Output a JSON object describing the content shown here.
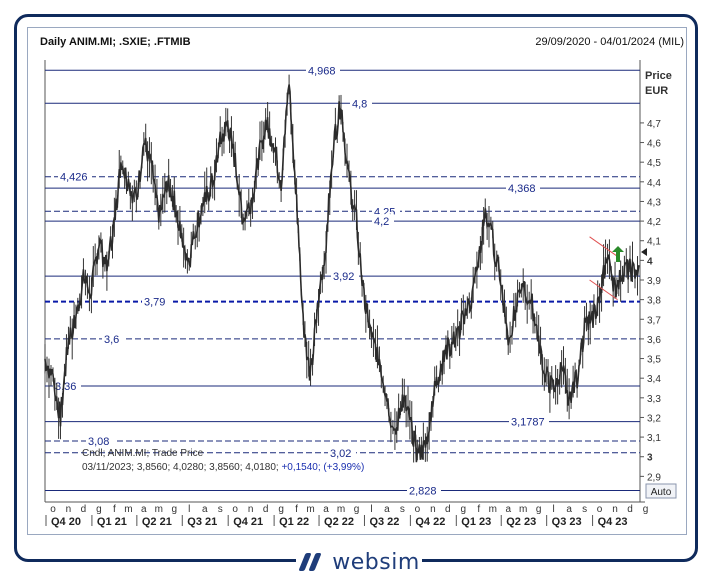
{
  "header": {
    "title": "Daily ANIM.MI; .SXIE; .FTMIB",
    "range": "29/09/2020 - 04/01/2024 (MIL)"
  },
  "axis": {
    "price_label": "Price",
    "currency_label": "EUR",
    "auto_button": "Auto",
    "brand": "websim"
  },
  "info_box": {
    "line1": "Cndl; ANIM.MI; Trade Price",
    "line2_prefix": "03/11/2023; 3,8560; 4,0280; 3,8560; 4,0180; ",
    "line2_change": "+0,1540; (+3,99%)"
  },
  "chart_data": {
    "type": "candlestick",
    "title": "Daily ANIM.MI; .SXIE; .FTMIB",
    "ylabel": "Price EUR",
    "ylim": [
      2.8,
      5.0
    ],
    "x_range": [
      "2020-09-29",
      "2024-01-04"
    ],
    "y_ticks": [
      "2,9",
      "3",
      "3,1",
      "3,2",
      "3,3",
      "3,4",
      "3,5",
      "3,6",
      "3,7",
      "3,8",
      "3,9",
      "4",
      "4,1",
      "4,2",
      "4,3",
      "4,4",
      "4,5",
      "4,6",
      "4,7"
    ],
    "month_ticks": [
      "o",
      "n",
      "d",
      "g",
      "f",
      "m",
      "a",
      "m",
      "g",
      "l",
      "a",
      "s",
      "o",
      "n",
      "d",
      "g",
      "f",
      "m",
      "a",
      "m",
      "g",
      "l",
      "a",
      "s",
      "o",
      "n",
      "d",
      "g",
      "f",
      "m",
      "a",
      "m",
      "g",
      "l",
      "a",
      "s",
      "o",
      "n",
      "d",
      "g"
    ],
    "quarter_labels": [
      "Q4 20",
      "Q1 21",
      "Q2 21",
      "Q3 21",
      "Q4 21",
      "Q1 22",
      "Q2 22",
      "Q3 22",
      "Q4 22",
      "Q1 23",
      "Q2 23",
      "Q3 23",
      "Q4 23"
    ],
    "last_candle": {
      "date": "03/11/2023",
      "open": 3.856,
      "high": 4.028,
      "low": 3.856,
      "close": 4.018,
      "change": 0.154,
      "change_pct": 3.99
    },
    "levels": [
      {
        "value": 4.968,
        "label": "4,968",
        "style": "solid"
      },
      {
        "value": 4.8,
        "label": "4,8",
        "style": "solid"
      },
      {
        "value": 4.426,
        "label": "4,426",
        "style": "dashed"
      },
      {
        "value": 4.368,
        "label": "4,368",
        "style": "solid"
      },
      {
        "value": 4.25,
        "label": "4,25",
        "style": "dashed"
      },
      {
        "value": 4.2,
        "label": "4,2",
        "style": "solid"
      },
      {
        "value": 3.92,
        "label": "3,92",
        "style": "solid"
      },
      {
        "value": 3.79,
        "label": "3,79",
        "style": "bold-dashed"
      },
      {
        "value": 3.6,
        "label": "3,6",
        "style": "dashed"
      },
      {
        "value": 3.36,
        "label": "3,36",
        "style": "solid"
      },
      {
        "value": 3.1787,
        "label": "3,1787",
        "style": "solid"
      },
      {
        "value": 3.08,
        "label": "3,08",
        "style": "dashed"
      },
      {
        "value": 3.02,
        "label": "3,02",
        "style": "dashed"
      },
      {
        "value": 2.828,
        "label": "2,828",
        "style": "solid"
      }
    ],
    "series": [
      {
        "name": "ANIM.MI",
        "type": "close_path",
        "dates": [
          "2020-09-29",
          "2020-10-15",
          "2020-10-30",
          "2020-11-15",
          "2020-11-30",
          "2020-12-15",
          "2020-12-31",
          "2021-01-15",
          "2021-01-31",
          "2021-02-15",
          "2021-02-28",
          "2021-03-15",
          "2021-03-31",
          "2021-04-15",
          "2021-04-30",
          "2021-05-15",
          "2021-05-31",
          "2021-06-15",
          "2021-06-30",
          "2021-07-15",
          "2021-07-31",
          "2021-08-15",
          "2021-08-31",
          "2021-09-15",
          "2021-09-30",
          "2021-10-15",
          "2021-10-31",
          "2021-11-15",
          "2021-11-30",
          "2021-12-15",
          "2021-12-31",
          "2022-01-15",
          "2022-01-31",
          "2022-02-15",
          "2022-02-28",
          "2022-03-15",
          "2022-03-31",
          "2022-04-15",
          "2022-04-30",
          "2022-05-15",
          "2022-05-31",
          "2022-06-15",
          "2022-06-30",
          "2022-07-15",
          "2022-07-31",
          "2022-08-15",
          "2022-08-31",
          "2022-09-15",
          "2022-09-30",
          "2022-10-15",
          "2022-10-31",
          "2022-11-15",
          "2022-11-30",
          "2022-12-15",
          "2022-12-31",
          "2023-01-15",
          "2023-01-31",
          "2023-02-15",
          "2023-02-28",
          "2023-03-15",
          "2023-03-31",
          "2023-04-15",
          "2023-04-30",
          "2023-05-15",
          "2023-05-31",
          "2023-06-15",
          "2023-06-30",
          "2023-07-15",
          "2023-07-31",
          "2023-08-15",
          "2023-08-31",
          "2023-09-15",
          "2023-09-30",
          "2023-10-15",
          "2023-10-31",
          "2023-11-15",
          "2023-11-30",
          "2023-12-15",
          "2024-01-04"
        ],
        "values": [
          3.5,
          3.4,
          3.2,
          3.6,
          3.7,
          3.9,
          3.85,
          4.1,
          3.95,
          4.2,
          4.5,
          4.4,
          4.3,
          4.6,
          4.5,
          4.2,
          4.4,
          4.3,
          4.1,
          4.0,
          4.2,
          4.3,
          4.4,
          4.6,
          4.7,
          4.5,
          4.2,
          4.3,
          4.5,
          4.7,
          4.6,
          4.4,
          4.9,
          4.3,
          3.7,
          3.4,
          3.8,
          4.1,
          4.6,
          4.8,
          4.4,
          4.2,
          3.8,
          3.6,
          3.5,
          3.3,
          3.1,
          3.3,
          3.2,
          3.0,
          3.05,
          3.3,
          3.45,
          3.55,
          3.6,
          3.7,
          3.8,
          4.0,
          4.25,
          4.1,
          3.9,
          3.6,
          3.75,
          3.85,
          3.8,
          3.6,
          3.4,
          3.35,
          3.45,
          3.3,
          3.4,
          3.65,
          3.7,
          3.8,
          4.05,
          3.85,
          3.95,
          3.95,
          3.95
        ]
      }
    ]
  }
}
